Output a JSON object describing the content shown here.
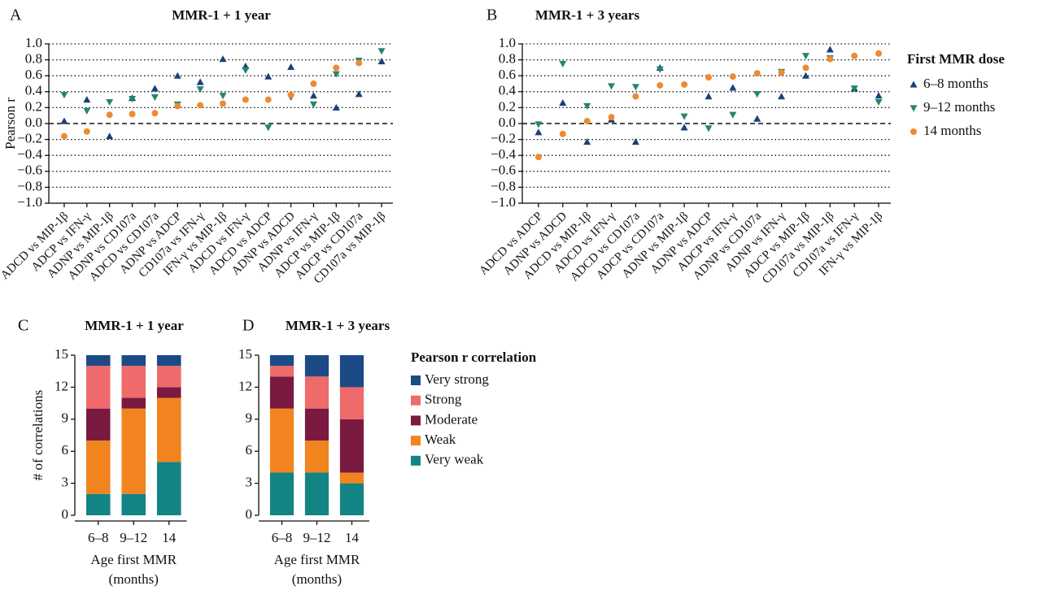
{
  "chart_data": [
    {
      "type": "scatter",
      "label": "A",
      "title": "MMR-1 + 1 year",
      "ylabel": "Pearson r",
      "categories": [
        "ADCD vs MIP-1β",
        "ADCP vs IFN-γ",
        "ADNP vs MIP-1β",
        "ADNP vs CD107a",
        "ADCD vs CD107a",
        "ADNP vs ADCP",
        "CD107a vs IFN-γ",
        "IFN-γ vs MIP-1β",
        "ADCD vs IFN-γ",
        "ADCD vs ADCP",
        "ADNP vs ADCD",
        "ADNP vs IFN-γ",
        "ADCP vs MIP-1β",
        "ADCP vs CD107a",
        "CD107a vs MIP-1β"
      ],
      "series": [
        {
          "color": "#1c3f78",
          "marker": "triangle-up",
          "values": [
            0.03,
            0.3,
            -0.16,
            0.32,
            0.44,
            0.6,
            0.52,
            0.81,
            0.72,
            0.59,
            0.71,
            0.35,
            0.2,
            0.37,
            0.78
          ]
        },
        {
          "color": "#23866a",
          "marker": "triangle-down",
          "values": [
            0.36,
            0.16,
            0.27,
            0.31,
            0.33,
            0.24,
            0.43,
            0.35,
            0.67,
            -0.05,
            0.33,
            0.24,
            0.62,
            0.79,
            0.91
          ]
        },
        {
          "color": "#ee8a35",
          "marker": "circle",
          "values": [
            -0.16,
            -0.1,
            0.11,
            0.12,
            0.13,
            0.22,
            0.23,
            0.25,
            0.3,
            0.3,
            0.36,
            0.5,
            0.7,
            0.76,
            null
          ]
        }
      ],
      "ylim": [
        -1,
        1
      ],
      "yticks": [
        {
          "value": -1,
          "label": "−1.0"
        },
        {
          "value": -0.8,
          "label": "−0.8"
        },
        {
          "value": -0.6,
          "label": "−0.6"
        },
        {
          "value": -0.4,
          "label": "−0.4"
        },
        {
          "value": -0.2,
          "label": "−0.2"
        },
        {
          "value": 0,
          "label": "0.0"
        },
        {
          "value": 0.2,
          "label": "0.2"
        },
        {
          "value": 0.4,
          "label": "0.4"
        },
        {
          "value": 0.6,
          "label": "0.6"
        },
        {
          "value": 0.8,
          "label": "0.8"
        },
        {
          "value": 1,
          "label": "1.0"
        }
      ],
      "grid": true
    },
    {
      "type": "scatter",
      "label": "B",
      "title": "MMR-1 + 3 years",
      "legend_title": "First MMR dose",
      "categories": [
        "ADCD vs ADCP",
        "ADNP vs ADCD",
        "ADCD vs MIP-1β",
        "ADCD vs IFN-γ",
        "ADCD vs CD107a",
        "ADCP vs CD107a",
        "ADNP vs MIP-1β",
        "ADNP vs ADCP",
        "ADCP vs IFN-γ",
        "ADNP vs CD107a",
        "ADNP vs IFN-γ",
        "ADCP vs MIP-1β",
        "CD107a vs MIP-1β",
        "CD107a vs IFN-γ",
        "IFN-γ vs MIP-1β"
      ],
      "series": [
        {
          "name": "6–8 months",
          "color": "#1c3f78",
          "marker": "triangle-up",
          "values": [
            -0.11,
            0.26,
            -0.23,
            0.05,
            -0.23,
            0.7,
            -0.05,
            0.34,
            0.45,
            0.06,
            0.34,
            0.6,
            0.93,
            0.44,
            0.35
          ]
        },
        {
          "name": "9–12 months",
          "color": "#23866a",
          "marker": "triangle-down",
          "values": [
            -0.01,
            0.75,
            0.22,
            0.47,
            0.46,
            0.68,
            0.09,
            -0.06,
            0.11,
            0.37,
            0.65,
            0.85,
            0.82,
            0.44,
            0.27
          ]
        },
        {
          "name": "14 months",
          "color": "#ee8a35",
          "marker": "circle",
          "values": [
            -0.42,
            -0.13,
            0.03,
            0.08,
            0.34,
            0.48,
            0.49,
            0.58,
            0.59,
            0.63,
            0.64,
            0.7,
            0.81,
            0.85,
            0.88
          ]
        }
      ],
      "ylim": [
        -1,
        1
      ],
      "yticks": [
        {
          "value": -1,
          "label": "−1.0"
        },
        {
          "value": -0.8,
          "label": "−0.8"
        },
        {
          "value": -0.6,
          "label": "−0.6"
        },
        {
          "value": -0.4,
          "label": "−0.4"
        },
        {
          "value": -0.2,
          "label": "−0.2"
        },
        {
          "value": 0,
          "label": "0.0"
        },
        {
          "value": 0.2,
          "label": "0.2"
        },
        {
          "value": 0.4,
          "label": "0.4"
        },
        {
          "value": 0.6,
          "label": "0.6"
        },
        {
          "value": 0.8,
          "label": "0.8"
        },
        {
          "value": 1,
          "label": "1.0"
        }
      ],
      "grid": true
    },
    {
      "type": "stacked-bar",
      "label": "C",
      "title": "MMR-1 + 1 year",
      "ylabel": "# of correlations",
      "xlabel": "Age first MMR",
      "xlabel_note": "(months)",
      "categories": [
        "6–8",
        "9–12",
        "14"
      ],
      "series": [
        {
          "color": "#138484",
          "values": [
            2,
            2,
            5
          ]
        },
        {
          "color": "#f2841f",
          "values": [
            5,
            8,
            6
          ]
        },
        {
          "color": "#7a1a41",
          "values": [
            3,
            1,
            1
          ]
        },
        {
          "color": "#ef6a6a",
          "values": [
            4,
            3,
            2
          ]
        },
        {
          "color": "#1c4a86",
          "values": [
            1,
            1,
            1
          ]
        }
      ],
      "ylim": [
        0,
        15
      ],
      "yticks": [
        0,
        3,
        6,
        9,
        12,
        15
      ]
    },
    {
      "type": "stacked-bar",
      "label": "D",
      "title": "MMR-1 + 3 years",
      "xlabel": "Age first MMR",
      "xlabel_note": "(months)",
      "legend_title": "Pearson r correlation",
      "categories": [
        "6–8",
        "9–12",
        "14"
      ],
      "series": [
        {
          "name": "Very weak",
          "color": "#138484",
          "values": [
            4,
            4,
            3
          ]
        },
        {
          "name": "Weak",
          "color": "#f2841f",
          "values": [
            6,
            3,
            1
          ]
        },
        {
          "name": "Moderate",
          "color": "#7a1a41",
          "values": [
            3,
            3,
            5
          ]
        },
        {
          "name": "Strong",
          "color": "#ef6a6a",
          "values": [
            1,
            3,
            3
          ]
        },
        {
          "name": "Very strong",
          "color": "#1c4a86",
          "values": [
            1,
            2,
            3
          ]
        }
      ],
      "ylim": [
        0,
        15
      ],
      "yticks": [
        0,
        3,
        6,
        9,
        12,
        15
      ]
    }
  ]
}
